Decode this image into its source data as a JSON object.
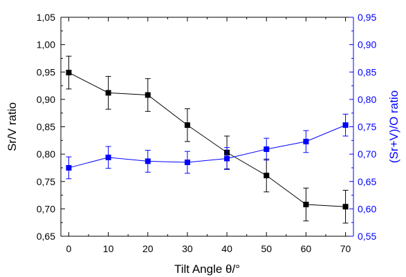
{
  "chart_data": {
    "type": "line",
    "title": "",
    "xlabel": "Tilt Angle θ/°",
    "ylabel_left": "Sr/V ratio",
    "ylabel_right": "(Sr+V)/O ratio",
    "xlim": [
      -2,
      72
    ],
    "ylim_left": [
      0.65,
      1.05
    ],
    "ylim_right": [
      0.55,
      0.95
    ],
    "x_ticks": [
      0,
      10,
      20,
      30,
      40,
      50,
      60,
      70
    ],
    "x_tick_labels": [
      "0",
      "10",
      "20",
      "30",
      "40",
      "50",
      "60",
      "70"
    ],
    "y_left_ticks": [
      0.65,
      0.7,
      0.75,
      0.8,
      0.85,
      0.9,
      0.95,
      1.0,
      1.05
    ],
    "y_left_tick_labels": [
      "0,65",
      "0,70",
      "0,75",
      "0,80",
      "0,85",
      "0,90",
      "0,95",
      "1,00",
      "1,05"
    ],
    "y_right_ticks": [
      0.55,
      0.6,
      0.65,
      0.7,
      0.75,
      0.8,
      0.85,
      0.9,
      0.95
    ],
    "y_right_tick_labels": [
      "0,55",
      "0,60",
      "0,65",
      "0,70",
      "0,75",
      "0,80",
      "0,85",
      "0,90",
      "0,95"
    ],
    "grid": false,
    "legend": "none",
    "series": [
      {
        "axis": "left",
        "color": "#000000",
        "marker": "square",
        "x": [
          0,
          10,
          20,
          30,
          40,
          50,
          60,
          70
        ],
        "y": [
          0.949,
          0.912,
          0.908,
          0.853,
          0.803,
          0.761,
          0.708,
          0.704
        ],
        "yerr": [
          0.03,
          0.03,
          0.03,
          0.03,
          0.03,
          0.03,
          0.03,
          0.03
        ]
      },
      {
        "axis": "right",
        "color": "#0000ff",
        "marker": "square",
        "x": [
          0,
          10,
          20,
          30,
          40,
          50,
          60,
          70
        ],
        "y": [
          0.675,
          0.694,
          0.687,
          0.685,
          0.692,
          0.709,
          0.723,
          0.753
        ],
        "yerr": [
          0.02,
          0.02,
          0.02,
          0.02,
          0.02,
          0.02,
          0.02,
          0.02
        ]
      }
    ]
  }
}
